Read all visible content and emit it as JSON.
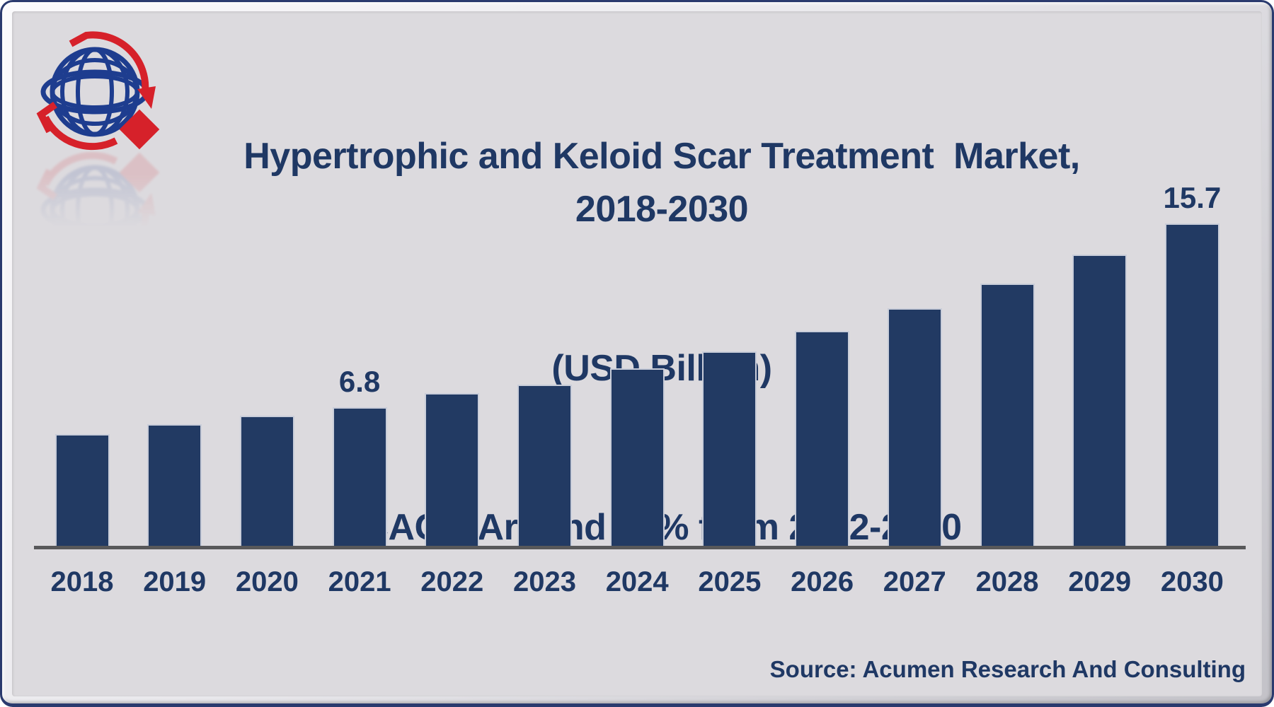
{
  "header": {
    "title_line1": "Hypertrophic and Keloid Scar Treatment  Market, 2018-2030",
    "title_line2": "(USD Billion)",
    "title_line3": "CAGR Around 10% from 2022-2030"
  },
  "footer": {
    "source": "Source: Acumen Research And Consulting"
  },
  "logo": {
    "name": "acumen-research-globe-logo"
  },
  "colors": {
    "bar_fill": "#223a63",
    "bar_outline": "#c9cdd9",
    "navy_text": "#1f3864",
    "canvas_background": "#dcdade",
    "axis_line": "#58585a",
    "frame_border": "#2a3a6e",
    "logo_red": "#d6212a",
    "logo_blue": "#1e3d8f"
  },
  "chart_data": {
    "type": "bar",
    "categories": [
      "2018",
      "2019",
      "2020",
      "2021",
      "2022",
      "2023",
      "2024",
      "2025",
      "2026",
      "2027",
      "2028",
      "2029",
      "2030"
    ],
    "values": [
      5.5,
      6.0,
      6.4,
      6.8,
      7.5,
      7.9,
      8.7,
      9.5,
      10.5,
      11.6,
      12.8,
      14.2,
      15.7
    ],
    "data_labels": {
      "2021": "6.8",
      "2030": "15.7"
    },
    "title": "Hypertrophic and Keloid Scar Treatment  Market, 2018-2030 (USD Billion)",
    "subtitle": "CAGR Around 10% from 2022-2030",
    "xlabel": "",
    "ylabel": "USD Billion",
    "ylim": [
      0,
      16.5
    ],
    "grid": false,
    "legend": false
  }
}
